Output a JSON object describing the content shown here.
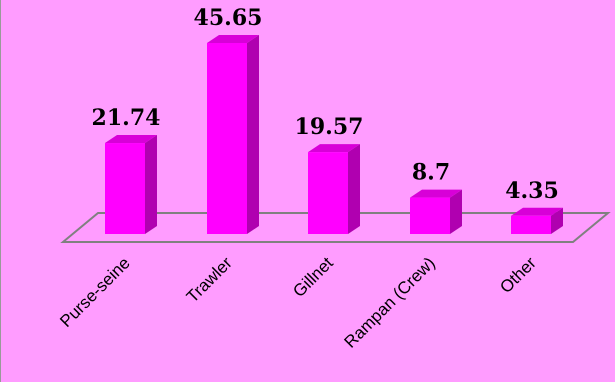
{
  "chart_data": {
    "type": "bar",
    "style": "3d-column",
    "categories": [
      "Purse-seine",
      "Trawler",
      "Gillnet",
      "Rampan (Crew)",
      "Other"
    ],
    "values": [
      21.74,
      45.65,
      19.57,
      8.7,
      4.35
    ],
    "value_labels": [
      "21.74",
      "45.65",
      "19.57",
      "8.7",
      "4.35"
    ],
    "title": "",
    "xlabel": "",
    "ylabel": "",
    "ylim": [
      0,
      45.65
    ],
    "grid": false,
    "legend": "none"
  },
  "colors": {
    "background": "#ff9cff",
    "bar_front": "#ff00ff",
    "bar_side": "#b000b0",
    "bar_top": "#d800d8",
    "floor_line": "#808080"
  }
}
